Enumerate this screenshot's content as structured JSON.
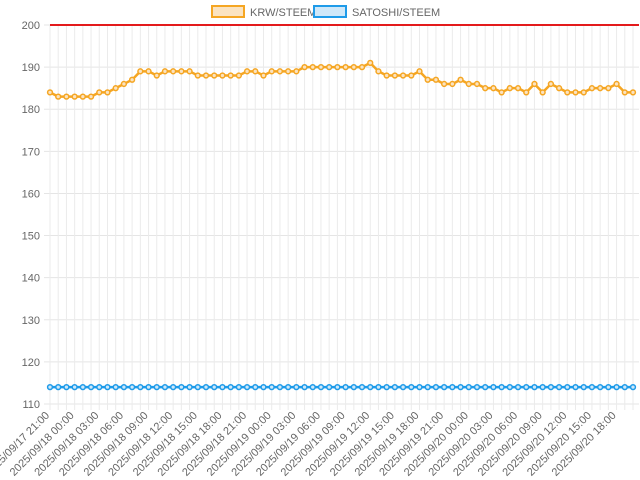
{
  "chart_data": {
    "type": "line",
    "title": "",
    "xlabel": "",
    "ylabel": "",
    "ylim": [
      110,
      200
    ],
    "y_ticks": [
      110,
      120,
      130,
      140,
      150,
      160,
      170,
      180,
      190,
      200
    ],
    "grid": true,
    "legend_position": "top",
    "threshold_line": {
      "value": 200,
      "color": "#e31a1c"
    },
    "x_tick_labels": [
      "2025/09/17 21:00",
      "2025/09/18 00:00",
      "2025/09/18 03:00",
      "2025/09/18 06:00",
      "2025/09/18 09:00",
      "2025/09/18 12:00",
      "2025/09/18 15:00",
      "2025/09/18 18:00",
      "2025/09/18 21:00",
      "2025/09/19 00:00",
      "2025/09/19 03:00",
      "2025/09/19 06:00",
      "2025/09/19 09:00",
      "2025/09/19 12:00",
      "2025/09/19 15:00",
      "2025/09/19 18:00",
      "2025/09/19 21:00",
      "2025/09/20 00:00",
      "2025/09/20 03:00",
      "2025/09/20 06:00",
      "2025/09/20 09:00",
      "2025/09/20 12:00",
      "2025/09/20 15:00",
      "2025/09/20 18:00"
    ],
    "series": [
      {
        "name": "KRW/STEEM",
        "color": "#f5a623",
        "fill": "#fbe3c0",
        "values": [
          184,
          183,
          183,
          183,
          183,
          183,
          184,
          184,
          185,
          186,
          187,
          189,
          189,
          188,
          189,
          189,
          189,
          189,
          188,
          188,
          188,
          188,
          188,
          188,
          189,
          189,
          188,
          189,
          189,
          189,
          189,
          190,
          190,
          190,
          190,
          190,
          190,
          190,
          190,
          191,
          189,
          188,
          188,
          188,
          188,
          189,
          187,
          187,
          186,
          186,
          187,
          186,
          186,
          185,
          185,
          184,
          185,
          185,
          184,
          186,
          184,
          186,
          185,
          184,
          184,
          184,
          185,
          185,
          185,
          186,
          184,
          184
        ]
      },
      {
        "name": "SATOSHI/STEEM",
        "color": "#1e9be9",
        "fill": "#cfe8f9",
        "values": [
          114,
          114,
          114,
          114,
          114,
          114,
          114,
          114,
          114,
          114,
          114,
          114,
          114,
          114,
          114,
          114,
          114,
          114,
          114,
          114,
          114,
          114,
          114,
          114,
          114,
          114,
          114,
          114,
          114,
          114,
          114,
          114,
          114,
          114,
          114,
          114,
          114,
          114,
          114,
          114,
          114,
          114,
          114,
          114,
          114,
          114,
          114,
          114,
          114,
          114,
          114,
          114,
          114,
          114,
          114,
          114,
          114,
          114,
          114,
          114,
          114,
          114,
          114,
          114,
          114,
          114,
          114,
          114,
          114,
          114,
          114,
          114
        ]
      }
    ]
  }
}
